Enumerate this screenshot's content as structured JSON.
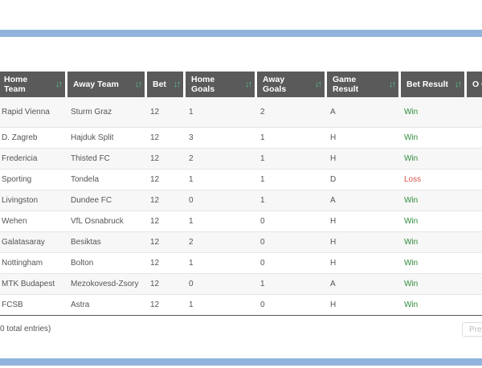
{
  "colors": {
    "band": "#92b4dc",
    "header_bg": "#5a5a5a",
    "sort_icon": "#5cc28a",
    "win": "#2e8b3a",
    "loss": "#d9534f"
  },
  "table": {
    "headers": [
      {
        "label": "Home Team",
        "sort_icon": "sort-arrows-icon"
      },
      {
        "label": "Away Team",
        "sort_icon": "sort-arrows-icon"
      },
      {
        "label": "Bet",
        "sort_icon": "sort-arrows-icon"
      },
      {
        "label": "Home Goals",
        "sort_icon": "sort-arrows-icon"
      },
      {
        "label": "Away Goals",
        "sort_icon": "sort-arrows-icon"
      },
      {
        "label": "Game Result",
        "sort_icon": "sort-arrows-icon"
      },
      {
        "label": "Bet Result",
        "sort_icon": "sort-arrows-icon"
      },
      {
        "label": "O O",
        "sort_icon": ""
      }
    ],
    "rows": [
      {
        "home": "Rapid Vienna",
        "away": "Sturm Graz",
        "bet": "12",
        "home_goals": "1",
        "away_goals": "2",
        "game_result": "A",
        "bet_result": "Win"
      },
      {
        "home": "D. Zagreb",
        "away": "Hajduk Split",
        "bet": "12",
        "home_goals": "3",
        "away_goals": "1",
        "game_result": "H",
        "bet_result": "Win"
      },
      {
        "home": "Fredericia",
        "away": "Thisted FC",
        "bet": "12",
        "home_goals": "2",
        "away_goals": "1",
        "game_result": "H",
        "bet_result": "Win"
      },
      {
        "home": "Sporting",
        "away": "Tondela",
        "bet": "12",
        "home_goals": "1",
        "away_goals": "1",
        "game_result": "D",
        "bet_result": "Loss"
      },
      {
        "home": "Livingston",
        "away": "Dundee FC",
        "bet": "12",
        "home_goals": "0",
        "away_goals": "1",
        "game_result": "A",
        "bet_result": "Win"
      },
      {
        "home": "Wehen",
        "away": "VfL Osnabruck",
        "bet": "12",
        "home_goals": "1",
        "away_goals": "0",
        "game_result": "H",
        "bet_result": "Win"
      },
      {
        "home": "Galatasaray",
        "away": "Besiktas",
        "bet": "12",
        "home_goals": "2",
        "away_goals": "0",
        "game_result": "H",
        "bet_result": "Win"
      },
      {
        "home": "Nottingham",
        "away": "Bolton",
        "bet": "12",
        "home_goals": "1",
        "away_goals": "0",
        "game_result": "H",
        "bet_result": "Win"
      },
      {
        "home": "MTK Budapest",
        "away": "Mezokovesd-Zsory",
        "bet": "12",
        "home_goals": "0",
        "away_goals": "1",
        "game_result": "A",
        "bet_result": "Win"
      },
      {
        "home": "FCSB",
        "away": "Astra",
        "bet": "12",
        "home_goals": "1",
        "away_goals": "0",
        "game_result": "H",
        "bet_result": "Win"
      }
    ]
  },
  "footer": {
    "info_text": "0 total entries)",
    "prev_label": "Pre"
  }
}
